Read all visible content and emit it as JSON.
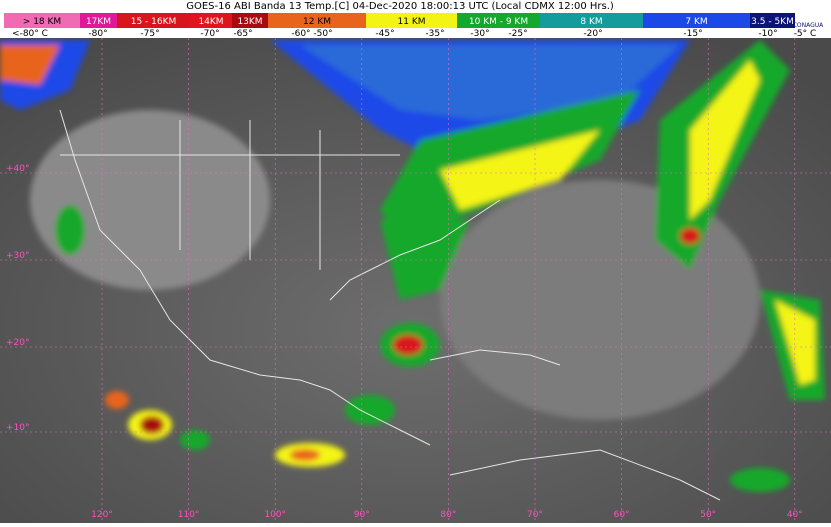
{
  "header": {
    "title": "GOES-16 ABI Banda 13 Temp.[C] 04-Dec-2020 18:00:13 UTC (Local CDMX  12:00 Hrs.)",
    "logo": "CONAGUA"
  },
  "legend": {
    "heights": [
      {
        "label": "> 18 KM",
        "color": "#f06ab4"
      },
      {
        "label": "17KM",
        "color": "#e0189a"
      },
      {
        "label": "15 - 16KM",
        "color": "#d8141c"
      },
      {
        "label": "14KM",
        "color": "#e0141c"
      },
      {
        "label": "13KM",
        "color": "#a80c10"
      },
      {
        "label": "12 KM",
        "color": "#e8641c"
      },
      {
        "label": "11 KM",
        "color": "#f4f414"
      },
      {
        "label": "10 KM - 9 KM",
        "color": "#14a82c"
      },
      {
        "label": "8 KM",
        "color": "#149c9c"
      },
      {
        "label": "7 KM",
        "color": "#1c48e8"
      },
      {
        "label": "3.5 - 5KM",
        "color": "#0c1478"
      }
    ],
    "temperatures": [
      "<-80° C",
      "-80°",
      "-75°",
      "-70°",
      "-65°",
      "-60° -50°",
      "-45°",
      "-35°",
      "-30°",
      "-25°",
      "-20°",
      "-15°",
      "-10°",
      "-5° C"
    ]
  },
  "map": {
    "latitudes": [
      "+40°",
      "+30°",
      "+20°",
      "+10°"
    ],
    "longitudes": [
      "120°",
      "110°",
      "100°",
      "90°",
      "80°",
      "70°",
      "60°",
      "50°",
      "40°"
    ]
  }
}
